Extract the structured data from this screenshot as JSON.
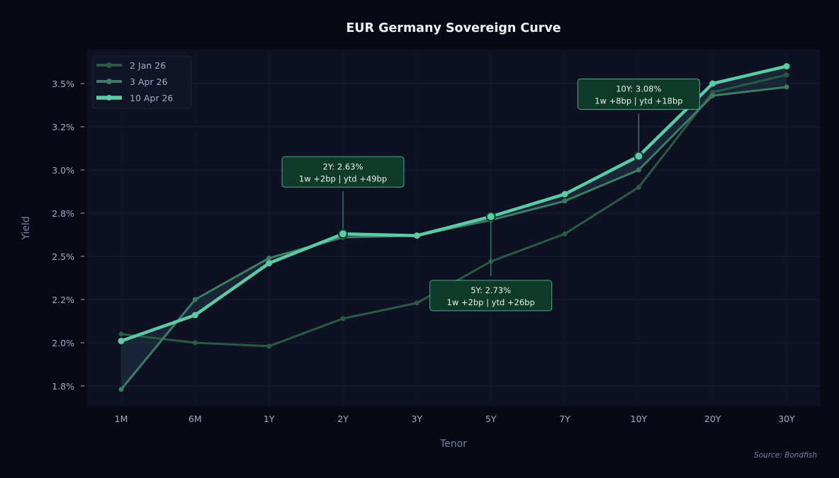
{
  "chart_data": {
    "type": "line",
    "title": "EUR Germany Sovereign Curve",
    "xlabel": "Tenor",
    "ylabel": "Yield",
    "source": "Source: Bondfish",
    "categories": [
      "1M",
      "6M",
      "1Y",
      "2Y",
      "3Y",
      "5Y",
      "7Y",
      "10Y",
      "20Y",
      "30Y"
    ],
    "ylim": [
      1.7,
      3.7
    ],
    "yticks": [
      1.75,
      2.0,
      2.25,
      2.5,
      2.75,
      3.0,
      3.25,
      3.5
    ],
    "ytick_labels": [
      "1.8%",
      "2.0%",
      "2.2%",
      "2.5%",
      "2.8%",
      "3.0%",
      "3.2%",
      "3.5%"
    ],
    "grid": true,
    "legend_position": "top-left",
    "series": [
      {
        "name": "2 Jan 26",
        "color": "#2a5a45",
        "values": [
          2.05,
          2.0,
          1.98,
          2.14,
          2.23,
          2.47,
          2.63,
          2.9,
          3.45,
          3.55
        ]
      },
      {
        "name": "3 Apr 26",
        "color": "#3a7d63",
        "values": [
          1.73,
          2.25,
          2.49,
          2.61,
          2.62,
          2.71,
          2.82,
          3.0,
          3.43,
          3.48
        ]
      },
      {
        "name": "10 Apr 26",
        "color": "#5ccba4",
        "values": [
          2.01,
          2.16,
          2.46,
          2.63,
          2.62,
          2.73,
          2.86,
          3.08,
          3.5,
          3.6
        ]
      }
    ],
    "fill_between": [
      "3 Apr 26",
      "10 Apr 26"
    ],
    "annotations": [
      {
        "tenor": "2Y",
        "value": 2.63,
        "line1": "2Y: 2.63%",
        "line2": "1w +2bp | ytd +49bp",
        "placement": "above"
      },
      {
        "tenor": "5Y",
        "value": 2.73,
        "line1": "5Y: 2.73%",
        "line2": "1w +2bp | ytd +26bp",
        "placement": "below"
      },
      {
        "tenor": "10Y",
        "value": 3.08,
        "line1": "10Y: 3.08%",
        "line2": "1w +8bp | ytd +18bp",
        "placement": "above"
      }
    ]
  },
  "colors": {
    "background": "#070a12",
    "plot_background": "#0d1122",
    "grid": "#1a1f36",
    "annotation_fill": "#0f3a2a",
    "annotation_border": "#5ccba4"
  }
}
